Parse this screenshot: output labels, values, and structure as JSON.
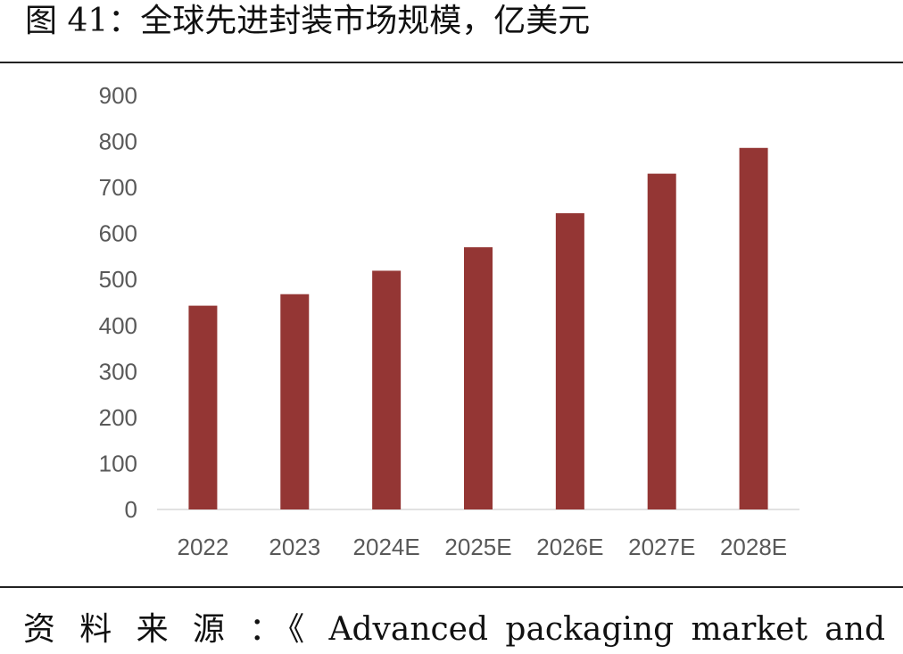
{
  "figure": {
    "title": "图 41：全球先进封装市场规模，亿美元"
  },
  "source_note": "资 料 来 源 ：《 Advanced packaging market and",
  "chart_data": {
    "type": "bar",
    "title": "",
    "xlabel": "",
    "ylabel": "",
    "categories": [
      "2022",
      "2023",
      "2024E",
      "2025E",
      "2026E",
      "2027E",
      "2028E"
    ],
    "values": [
      443,
      468,
      519,
      570,
      644,
      730,
      786
    ],
    "ylim": [
      0,
      900
    ],
    "yticks": [
      "0",
      "100",
      "200",
      "300",
      "400",
      "500",
      "600",
      "700",
      "800",
      "900"
    ],
    "grid": false,
    "legend": "none",
    "bar_color": "#943634",
    "axis_color": "#d9d9d9",
    "tick_color": "#595959"
  }
}
